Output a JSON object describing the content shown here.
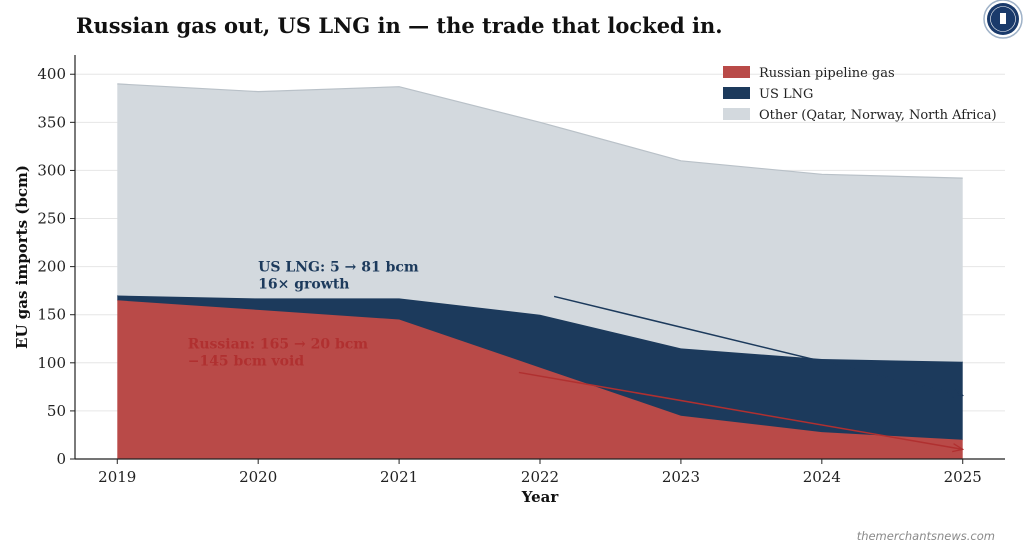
{
  "brand": {
    "logo_icon": "globe-seal-icon",
    "logo_color": "#1a3a6b"
  },
  "watermark": "themerchantsnews.com",
  "colors": {
    "russian": "#b94a48",
    "us_lng": "#1c3a5c",
    "other": "#d3d9de"
  },
  "chart_data": {
    "type": "area",
    "stacked": true,
    "title": "Russian gas out, US LNG in — the trade that locked in.",
    "xlabel": "Year",
    "ylabel": "EU gas imports (bcm)",
    "x": [
      2019,
      2020,
      2021,
      2022,
      2023,
      2024,
      2025
    ],
    "xlim": [
      2018.7,
      2025.3
    ],
    "ylim": [
      0,
      420
    ],
    "yticks": [
      0,
      50,
      100,
      150,
      200,
      250,
      300,
      350,
      400
    ],
    "grid": "horizontal",
    "legend_position": "top-right",
    "series": [
      {
        "name": "Russian pipeline gas",
        "color": "#b94a48",
        "values": [
          165,
          155,
          145,
          95,
          45,
          28,
          20
        ]
      },
      {
        "name": "US LNG",
        "color": "#1c3a5c",
        "values": [
          5,
          12,
          22,
          55,
          70,
          76,
          81
        ]
      },
      {
        "name": "Other (Qatar, Norway, North Africa)",
        "color": "#d3d9de",
        "values": [
          220,
          215,
          220,
          200,
          195,
          192,
          191
        ]
      }
    ],
    "annotations": [
      {
        "lines": [
          "US LNG: 5 → 81 bcm",
          "16× growth"
        ],
        "color": "#1c3a5c",
        "text_at": [
          2020.0,
          195
        ],
        "arrow_from": [
          2022.1,
          169
        ],
        "arrow_to": [
          2025.0,
          66
        ]
      },
      {
        "lines": [
          "Russian: 165 → 20 bcm",
          "−145 bcm void"
        ],
        "color": "#b03030",
        "text_at": [
          2019.5,
          115
        ],
        "arrow_from": [
          2021.85,
          90
        ],
        "arrow_to": [
          2025.0,
          10
        ]
      }
    ]
  }
}
